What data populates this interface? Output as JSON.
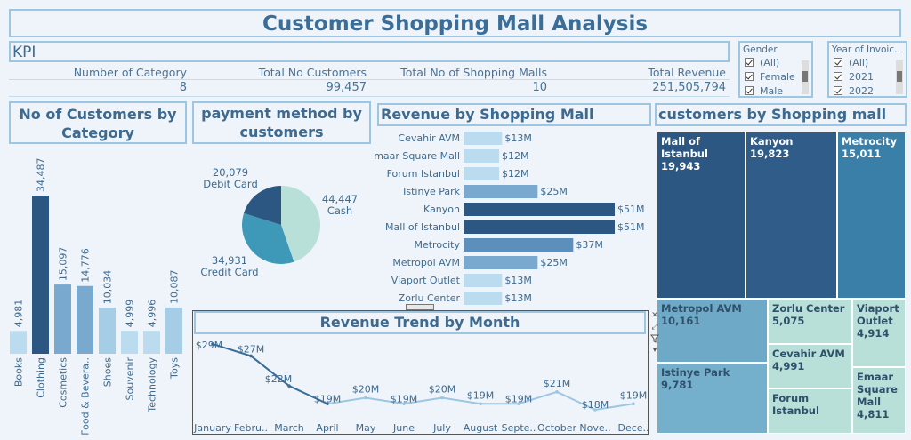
{
  "title": "Customer Shopping Mall Analysis",
  "kpi": {
    "label": "KPI",
    "items": [
      {
        "label": "Number of Category",
        "value": "8"
      },
      {
        "label": "Total No Customers",
        "value": "99,457"
      },
      {
        "label": "Total No of Shopping Malls",
        "value": "10"
      },
      {
        "label": "Total Revenue",
        "value": "251,505,794"
      }
    ]
  },
  "filters": {
    "gender": {
      "title": "Gender",
      "options": [
        "(All)",
        "Female",
        "Male"
      ]
    },
    "year": {
      "title": "Year of Invoic..",
      "options": [
        "(All)",
        "2021",
        "2022"
      ]
    }
  },
  "section_titles": {
    "category": "No of Customers by Category",
    "payment": "payment method by customers",
    "revenue_mall": "Revenue by Shopping Mall",
    "customers_mall": "customers by Shopping mall",
    "trend": "Revenue Trend by Month"
  },
  "toolbar_icons": [
    "close-icon",
    "expand-icon",
    "filter-icon",
    "more-options-icon"
  ],
  "colors": {
    "accent": "#3a6e98",
    "border": "#9cc6e2",
    "bar_dark": "#2d5783",
    "bar_mid": "#7aa9d0",
    "bar_light": "#a6cde6",
    "bar_lighter": "#bbdcee"
  },
  "chart_data": [
    {
      "id": "category",
      "type": "bar",
      "categories": [
        "Books",
        "Clothing",
        "Cosmetics",
        "Food & Bevera..",
        "Shoes",
        "Souvenir",
        "Technology",
        "Toys"
      ],
      "values": [
        4981,
        34487,
        15097,
        14776,
        10034,
        4999,
        4996,
        10087
      ],
      "labels": [
        "4,981",
        "34,487",
        "15,097",
        "14,776",
        "10,034",
        "4,999",
        "4,996",
        "10,087"
      ],
      "ylim": [
        0,
        34487
      ]
    },
    {
      "id": "payment",
      "type": "pie",
      "categories": [
        "Cash",
        "Credit Card",
        "Debit Card"
      ],
      "values": [
        44447,
        34931,
        20079
      ],
      "labels": [
        "44,447",
        "34,931",
        "20,079"
      ],
      "colors": [
        "#b8e0d9",
        "#3e98b8",
        "#2d5783"
      ]
    },
    {
      "id": "revenue_mall",
      "type": "bar",
      "orientation": "horizontal",
      "categories": [
        "Cevahir AVM",
        "Emaar Square Mall",
        "Forum Istanbul",
        "Istinye Park",
        "Kanyon",
        "Mall of Istanbul",
        "Metrocity",
        "Metropol AVM",
        "Viaport Outlet",
        "Zorlu Center"
      ],
      "values": [
        13,
        12,
        12,
        25,
        51,
        51,
        37,
        25,
        13,
        13
      ],
      "labels": [
        "$13M",
        "$12M",
        "$12M",
        "$25M",
        "$51M",
        "$51M",
        "$37M",
        "$25M",
        "$13M",
        "$13M"
      ],
      "unit": "$M",
      "xlim": [
        0,
        51
      ]
    },
    {
      "id": "customers_mall",
      "type": "treemap",
      "categories": [
        "Mall of Istanbul",
        "Kanyon",
        "Metrocity",
        "Metropol AVM",
        "Istinye Park",
        "Zorlu Center",
        "Cevahir AVM",
        "Forum Istanbul",
        "Viaport Outlet",
        "Emaar Square Mall"
      ],
      "display_names": [
        "Mall of Istanbul",
        "Kanyon",
        "Metrocity",
        "Metropol AVM",
        "Istinye Park",
        "Zorlu Center",
        "Cevahir AVM",
        "Forum Istanbul",
        "Viaport Outlet",
        "Emaar Square Mall"
      ],
      "values": [
        19943,
        19823,
        15011,
        10161,
        9781,
        5075,
        4991,
        4947,
        4914,
        4811
      ],
      "labels": [
        "19,943",
        "19,823",
        "15,011",
        "10,161",
        "9,781",
        "5,075",
        "4,991",
        "",
        "4,914",
        "4,811"
      ]
    },
    {
      "id": "trend",
      "type": "line",
      "categories": [
        "January",
        "Febru..",
        "March",
        "April",
        "May",
        "June",
        "July",
        "August",
        "Septe..",
        "October",
        "Nove..",
        "Dece.."
      ],
      "values": [
        29,
        27,
        22,
        19,
        20,
        19,
        20,
        19,
        19,
        21,
        18,
        19
      ],
      "labels": [
        "$29M",
        "$27M",
        "$22M",
        "$19M",
        "$20M",
        "$19M",
        "$20M",
        "$19M",
        "$19M",
        "$21M",
        "$18M",
        "$19M"
      ],
      "unit": "$M"
    }
  ]
}
